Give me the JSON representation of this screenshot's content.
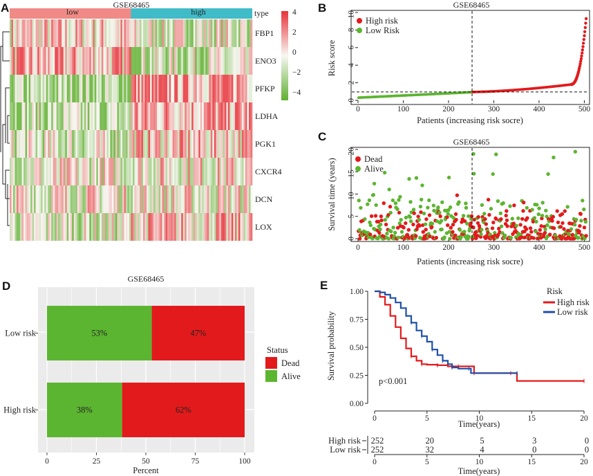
{
  "panels": {
    "A": "A",
    "B": "B",
    "C": "C",
    "D": "D",
    "E": "E"
  },
  "colors": {
    "heat_low": "#5fb030",
    "heat_mid": "#f7f7f2",
    "heat_high": "#e8333a",
    "group_low": "#f08a86",
    "group_high": "#40bcc9",
    "red": "#e31a1c",
    "green": "#5cb531",
    "blue": "#1f4fa8"
  },
  "heatmap": {
    "title": "GSE68465",
    "annotation_label": "type",
    "groups": [
      "low",
      "high"
    ],
    "genes": [
      "FBP1",
      "ENO3",
      "PFKP",
      "LDHA",
      "PGK1",
      "CXCR4",
      "DCN",
      "LOX"
    ],
    "legend_ticks": [
      "4",
      "2",
      "0",
      "−2",
      "−4"
    ]
  },
  "chart_data": [
    {
      "id": "B",
      "type": "scatter",
      "title": "GSE68465",
      "xlabel": "Patients (increasing risk socre)",
      "ylabel": "Risk score",
      "xlim": [
        0,
        510
      ],
      "ylim": [
        0,
        10
      ],
      "xticks": [
        "0",
        "100",
        "200",
        "300",
        "400",
        "500"
      ],
      "yticks": [
        "0",
        "2",
        "4",
        "6",
        "8",
        "10"
      ],
      "n_patients": 504,
      "cutoff_patient": 252,
      "cutoff_score": 0.95,
      "legend": [
        {
          "name": "High risk",
          "color": "#e31a1c"
        },
        {
          "name": "Low Risk",
          "color": "#5cb531"
        }
      ]
    },
    {
      "id": "C",
      "type": "scatter",
      "title": "GSE68465",
      "xlabel": "Patients (increasing risk socre)",
      "ylabel": "Survival time (years)",
      "xlim": [
        0,
        510
      ],
      "ylim": [
        0,
        20
      ],
      "xticks": [
        "0",
        "100",
        "200",
        "300",
        "400",
        "500"
      ],
      "yticks": [
        "0",
        "5",
        "10",
        "15",
        "20"
      ],
      "cutoff_patient": 252,
      "legend": [
        {
          "name": "Dead",
          "color": "#e31a1c"
        },
        {
          "name": "Alive",
          "color": "#5cb531"
        }
      ]
    },
    {
      "id": "D",
      "type": "bar",
      "title": "GSE68465",
      "xlabel": "Percent",
      "categories": [
        "Low risk",
        "High risk"
      ],
      "series": [
        {
          "name": "Alive",
          "values": [
            53,
            38
          ]
        },
        {
          "name": "Dead",
          "values": [
            47,
            62
          ]
        }
      ],
      "labels": [
        [
          "53%",
          "47%"
        ],
        [
          "38%",
          "62%"
        ]
      ],
      "xticks": [
        "0",
        "25",
        "50",
        "75",
        "100"
      ],
      "legend_title": "Status",
      "legend": [
        {
          "name": "Dead",
          "color": "#e31a1c"
        },
        {
          "name": "Alive",
          "color": "#5cb531"
        }
      ]
    },
    {
      "id": "E",
      "type": "line",
      "title": "",
      "xlabel": "Time(years)",
      "ylabel": "Survival probability",
      "xlim": [
        0,
        20
      ],
      "ylim": [
        0,
        1
      ],
      "xticks": [
        "0",
        "5",
        "10",
        "15",
        "20"
      ],
      "yticks": [
        "0.00",
        "0.25",
        "0.50",
        "0.75",
        "1.00"
      ],
      "pvalue": "p<0.001",
      "legend_title": "Risk",
      "series": [
        {
          "name": "High risk",
          "color": "#e31a1c",
          "points": [
            [
              0,
              1
            ],
            [
              0.5,
              0.95
            ],
            [
              1,
              0.88
            ],
            [
              1.5,
              0.78
            ],
            [
              2,
              0.68
            ],
            [
              2.5,
              0.58
            ],
            [
              3,
              0.49
            ],
            [
              3.5,
              0.42
            ],
            [
              4,
              0.38
            ],
            [
              4.5,
              0.35
            ],
            [
              5,
              0.345
            ],
            [
              6,
              0.34
            ],
            [
              7,
              0.33
            ],
            [
              8,
              0.33
            ],
            [
              9,
              0.33
            ],
            [
              9.5,
              0.27
            ],
            [
              11,
              0.27
            ],
            [
              13,
              0.27
            ],
            [
              13.6,
              0.2
            ],
            [
              20,
              0.2
            ]
          ]
        },
        {
          "name": "Low risk",
          "color": "#1f4fa8",
          "points": [
            [
              0,
              1
            ],
            [
              0.5,
              0.99
            ],
            [
              1,
              0.97
            ],
            [
              1.5,
              0.94
            ],
            [
              2,
              0.9
            ],
            [
              2.5,
              0.85
            ],
            [
              3,
              0.78
            ],
            [
              3.5,
              0.72
            ],
            [
              4,
              0.65
            ],
            [
              4.5,
              0.6
            ],
            [
              5,
              0.55
            ],
            [
              5.5,
              0.48
            ],
            [
              6,
              0.43
            ],
            [
              6.5,
              0.38
            ],
            [
              7,
              0.35
            ],
            [
              7.4,
              0.32
            ],
            [
              8,
              0.31
            ],
            [
              9,
              0.31
            ],
            [
              9.2,
              0.27
            ],
            [
              13.6,
              0.27
            ]
          ]
        }
      ],
      "risk_table": {
        "times": [
          "0",
          "5",
          "10",
          "15",
          "20"
        ],
        "rows": [
          {
            "label": "High risk",
            "color": "#e31a1c",
            "values": [
              "252",
              "20",
              "5",
              "3",
              "0"
            ]
          },
          {
            "label": "Low risk",
            "color": "#1f4fa8",
            "values": [
              "252",
              "32",
              "4",
              "0",
              "0"
            ]
          }
        ],
        "xlabel": "Time(years)"
      }
    }
  ]
}
